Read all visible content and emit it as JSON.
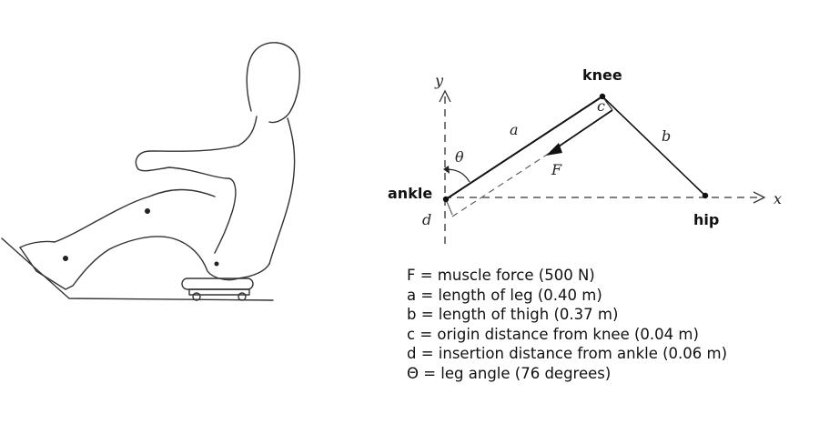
{
  "diagram": {
    "labels": {
      "knee": "knee",
      "ankle": "ankle",
      "hip": "hip",
      "x_axis": "x",
      "y_axis": "y",
      "a": "a",
      "b": "b",
      "c": "c",
      "d": "d",
      "theta": "θ",
      "force": "F"
    },
    "legend": [
      "F = muscle force (500 N)",
      "a = length of leg (0.40 m)",
      "b = length of thigh (0.37 m)",
      "c = origin distance from knee (0.04 m)",
      "d = insertion distance from ankle (0.06 m)",
      "Θ = leg angle (76 degrees)"
    ]
  }
}
